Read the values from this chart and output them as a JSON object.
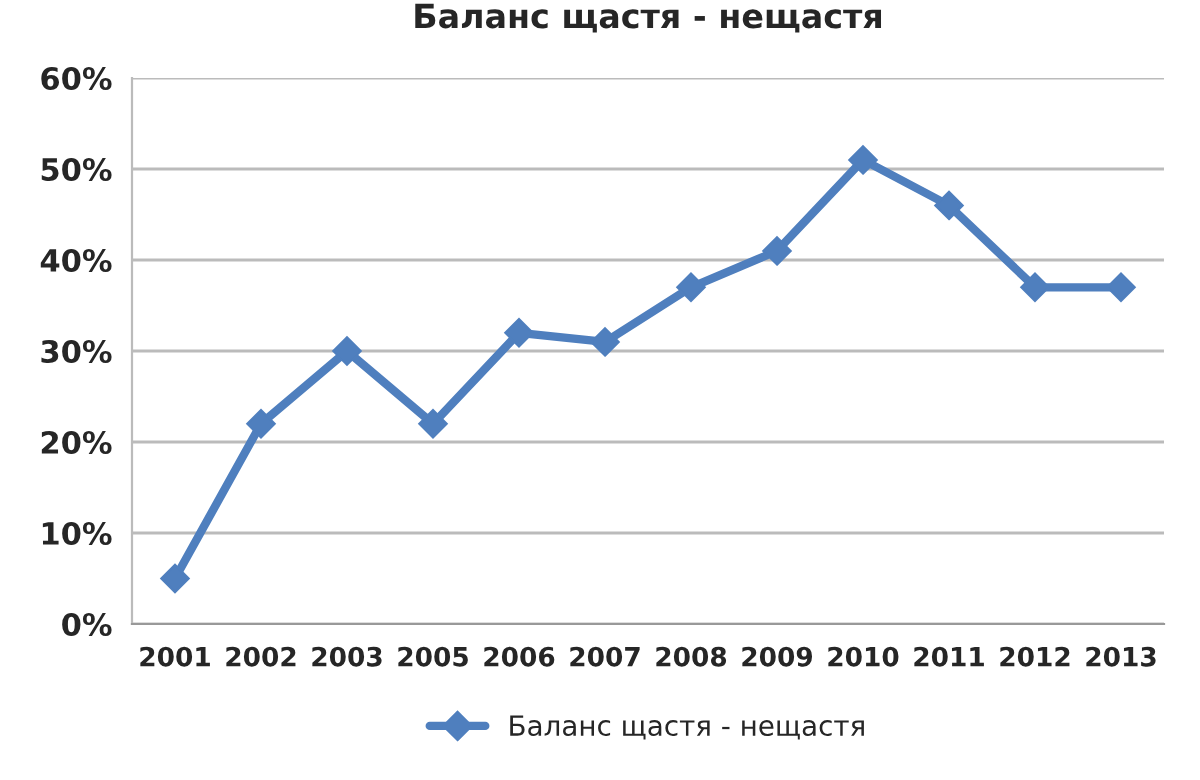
{
  "chart_data": {
    "type": "line",
    "title": "Баланс щастя - нещастя",
    "categories": [
      "2001",
      "2002",
      "2003",
      "2005",
      "2006",
      "2007",
      "2008",
      "2009",
      "2010",
      "2011",
      "2012",
      "2013"
    ],
    "series": [
      {
        "name": "Баланс щастя - нещастя",
        "color": "#4f7fbe",
        "values": [
          5,
          22,
          30,
          22,
          32,
          31,
          37,
          41,
          51,
          46,
          37,
          37
        ]
      }
    ],
    "ylim": [
      0,
      60
    ],
    "yticks": [
      {
        "value": 0,
        "label": "0%"
      },
      {
        "value": 10,
        "label": "10%"
      },
      {
        "value": 20,
        "label": "20%"
      },
      {
        "value": 30,
        "label": "30%"
      },
      {
        "value": 40,
        "label": "40%"
      },
      {
        "value": 50,
        "label": "50%"
      },
      {
        "value": 60,
        "label": "60%"
      }
    ],
    "grid": "y",
    "legend": "bottom",
    "marker": "diamond",
    "line_style": "solid"
  }
}
